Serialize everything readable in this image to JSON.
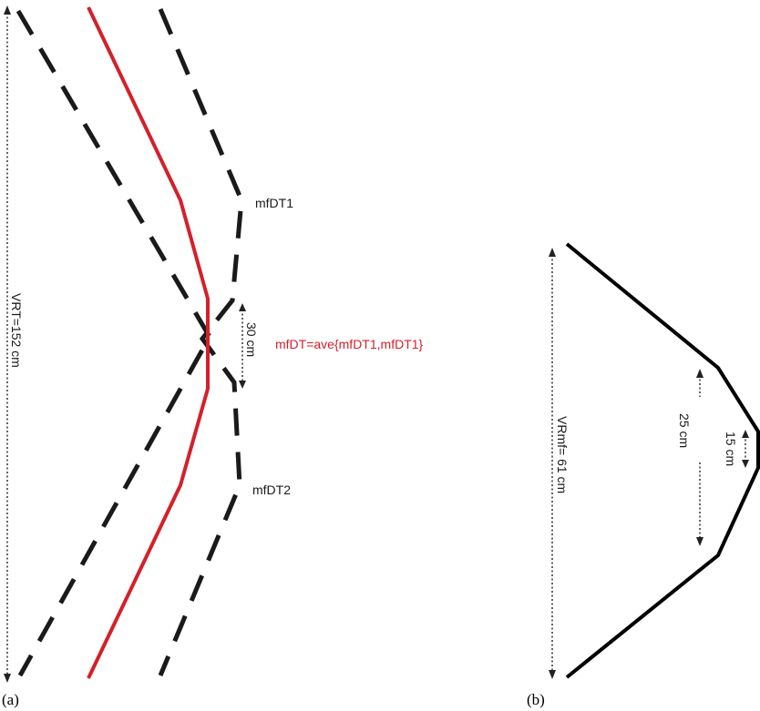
{
  "panel_a": {
    "panel_label": "(a)",
    "vrt_label": "VRT=152 cm",
    "curve_top_label": "mfDT1",
    "curve_bottom_label": "mfDT2",
    "average_label": "mfDT=ave{mfDT1,mfDT1}",
    "gap_label": "30 cm"
  },
  "panel_b": {
    "panel_label": "(b)",
    "vrmf_label": "VRmf= 61 cm",
    "inner_label": "25 cm",
    "tip_label": "15 cm"
  },
  "colors": {
    "average_line": "#d4202a",
    "dashed_lines": "#1a1a1a",
    "profile_line": "#000000"
  }
}
